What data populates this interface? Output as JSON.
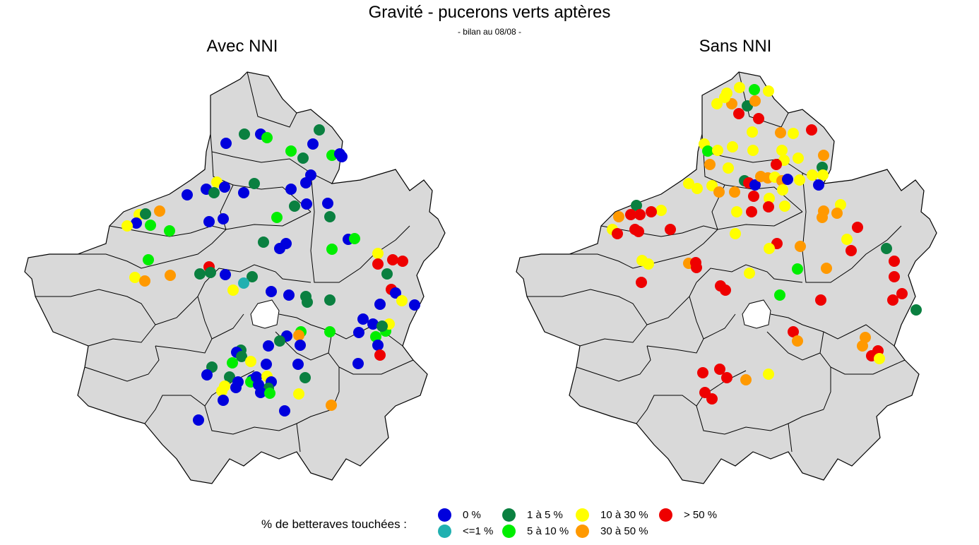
{
  "title": "Gravité - pucerons verts aptères",
  "subtitle": "- bilan au 08/08 -",
  "maps": {
    "left_title": "Avec NNI",
    "right_title": "Sans NNI"
  },
  "legend": {
    "title": "% de betteraves touchées :",
    "items": [
      {
        "key": "c0",
        "label": "0 %",
        "color": "#0000dd"
      },
      {
        "key": "c1",
        "label": "<=1 %",
        "color": "#20b0b0"
      },
      {
        "key": "c2",
        "label": "1 à 5 %",
        "color": "#0a8040"
      },
      {
        "key": "c3",
        "label": "5 à 10 %",
        "color": "#00ee00"
      },
      {
        "key": "c4",
        "label": "10 à 30 %",
        "color": "#ffff00"
      },
      {
        "key": "c5",
        "label": "30 à 50 %",
        "color": "#ff9900"
      },
      {
        "key": "c6",
        "label": "> 50 %",
        "color": "#ee0000"
      }
    ]
  },
  "colors": {
    "region_fill": "#d9d9d9",
    "region_stroke": "#000000"
  }
}
